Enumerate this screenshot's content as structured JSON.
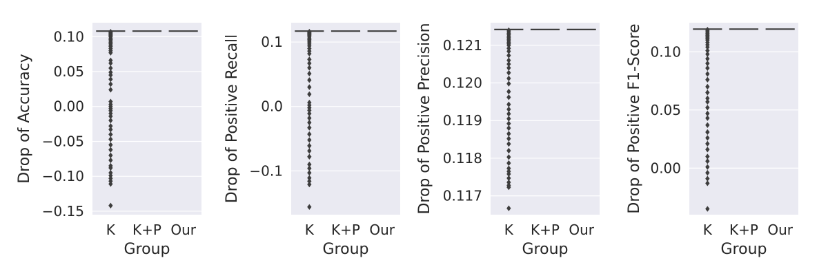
{
  "colors": {
    "panel_bg": "#EAEAF2",
    "grid": "#FFFFFF",
    "mark": "#3D3D3D",
    "text": "#262626"
  },
  "chart_data": [
    {
      "type": "box",
      "xlabel": "Group",
      "ylabel": "Drop of Accuracy",
      "categories": [
        "K",
        "K+P",
        "Our"
      ],
      "ylim": [
        -0.155,
        0.12
      ],
      "yticks": [
        {
          "value": 0.1,
          "label": "0.10"
        },
        {
          "value": 0.05,
          "label": "0.05"
        },
        {
          "value": 0.0,
          "label": "0.00"
        },
        {
          "value": -0.05,
          "label": "−0.05"
        },
        {
          "value": -0.1,
          "label": "−0.10"
        },
        {
          "value": -0.15,
          "label": "−0.15"
        }
      ],
      "box_level": 0.108,
      "outliers": [
        0.107,
        0.106,
        0.105,
        0.104,
        0.103,
        0.102,
        0.101,
        0.1,
        0.098,
        0.096,
        0.094,
        0.092,
        0.09,
        0.088,
        0.086,
        0.083,
        0.08,
        0.077,
        0.066,
        0.062,
        0.055,
        0.049,
        0.045,
        0.039,
        0.032,
        0.024,
        0.007,
        0.003,
        0.0,
        -0.003,
        -0.006,
        -0.01,
        -0.014,
        -0.02,
        -0.028,
        -0.033,
        -0.04,
        -0.047,
        -0.055,
        -0.062,
        -0.07,
        -0.077,
        -0.085,
        -0.088,
        -0.095,
        -0.099,
        -0.103,
        -0.107,
        -0.111,
        -0.142
      ]
    },
    {
      "type": "box",
      "xlabel": "Group",
      "ylabel": "Drop of Positive Recall",
      "categories": [
        "K",
        "K+P",
        "Our"
      ],
      "ylim": [
        -0.168,
        0.13
      ],
      "yticks": [
        {
          "value": 0.1,
          "label": "0.1"
        },
        {
          "value": 0.0,
          "label": "0.0"
        },
        {
          "value": -0.1,
          "label": "−0.1"
        }
      ],
      "box_level": 0.117,
      "outliers": [
        0.116,
        0.115,
        0.114,
        0.113,
        0.112,
        0.111,
        0.11,
        0.108,
        0.106,
        0.104,
        0.102,
        0.1,
        0.097,
        0.094,
        0.09,
        0.086,
        0.082,
        0.073,
        0.067,
        0.06,
        0.051,
        0.041,
        0.03,
        0.019,
        0.006,
        0.002,
        -0.002,
        -0.006,
        -0.011,
        -0.018,
        -0.025,
        -0.033,
        -0.043,
        -0.052,
        -0.061,
        -0.069,
        -0.078,
        -0.09,
        -0.096,
        -0.103,
        -0.111,
        -0.116,
        -0.121,
        -0.156
      ]
    },
    {
      "type": "box",
      "xlabel": "Group",
      "ylabel": "Drop of Positive Precision",
      "categories": [
        "K",
        "K+P",
        "Our"
      ],
      "ylim": [
        116.5,
        121.6
      ],
      "scale": 0.001,
      "yticks": [
        {
          "value": 121,
          "label": "0.121"
        },
        {
          "value": 120,
          "label": "0.120"
        },
        {
          "value": 119,
          "label": "0.119"
        },
        {
          "value": 118,
          "label": "0.118"
        },
        {
          "value": 117,
          "label": "0.117"
        }
      ],
      "box_level": 121.42,
      "outliers": [
        121.4,
        121.36,
        121.32,
        121.28,
        121.24,
        121.2,
        121.16,
        121.12,
        121.08,
        121.04,
        121.0,
        120.92,
        120.84,
        120.73,
        120.6,
        120.5,
        120.4,
        120.27,
        120.12,
        119.98,
        119.77,
        119.62,
        119.43,
        119.3,
        119.18,
        119.05,
        118.92,
        118.8,
        118.65,
        118.52,
        118.38,
        118.2,
        118.03,
        117.87,
        117.73,
        117.65,
        117.58,
        117.47,
        117.36,
        117.28,
        117.23,
        116.67
      ]
    },
    {
      "type": "box",
      "xlabel": "Group",
      "ylabel": "Drop of Positive F1-Score",
      "categories": [
        "K",
        "K+P",
        "Our"
      ],
      "ylim": [
        -0.04,
        0.125
      ],
      "yticks": [
        {
          "value": 0.1,
          "label": "0.10"
        },
        {
          "value": 0.05,
          "label": "0.05"
        },
        {
          "value": 0.0,
          "label": "0.00"
        }
      ],
      "box_level": 0.1195,
      "outliers": [
        0.119,
        0.118,
        0.117,
        0.116,
        0.115,
        0.114,
        0.113,
        0.112,
        0.111,
        0.11,
        0.108,
        0.106,
        0.104,
        0.101,
        0.098,
        0.094,
        0.09,
        0.086,
        0.081,
        0.076,
        0.07,
        0.065,
        0.06,
        0.057,
        0.052,
        0.047,
        0.043,
        0.037,
        0.031,
        0.026,
        0.021,
        0.016,
        0.01,
        0.006,
        0.001,
        -0.004,
        -0.009,
        -0.013,
        -0.035
      ]
    }
  ]
}
